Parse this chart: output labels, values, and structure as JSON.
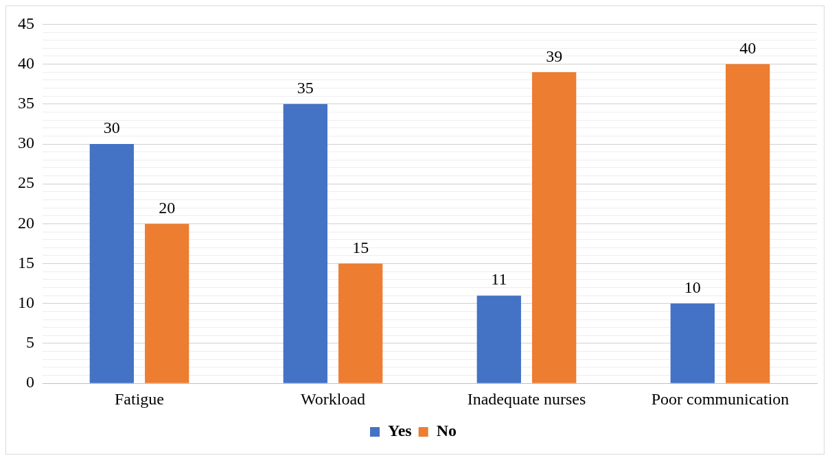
{
  "chart_data": {
    "type": "bar",
    "categories": [
      "Fatigue",
      "Workload",
      "Inadequate nurses",
      "Poor communication"
    ],
    "series": [
      {
        "name": "Yes",
        "color": "#4472c4",
        "values": [
          30,
          35,
          11,
          10
        ]
      },
      {
        "name": "No",
        "color": "#ed7d31",
        "values": [
          20,
          15,
          39,
          40
        ]
      }
    ],
    "ylim": [
      0,
      45
    ],
    "yticks": [
      0,
      {
        "value": 1,
        "label": null
      },
      {
        "value": 2,
        "label": null
      },
      {
        "value": 3,
        "label": null
      },
      {
        "value": 4,
        "label": null
      },
      5,
      {
        "value": 6,
        "label": null
      },
      {
        "value": 7,
        "label": null
      },
      {
        "value": 8,
        "label": null
      },
      {
        "value": 9,
        "label": null
      },
      10,
      {
        "value": 11,
        "label": null
      },
      {
        "value": 12,
        "label": null
      },
      {
        "value": 13,
        "label": null
      },
      {
        "value": 14,
        "label": null
      },
      15,
      {
        "value": 16,
        "label": null
      },
      {
        "value": 17,
        "label": null
      },
      {
        "value": 18,
        "label": null
      },
      {
        "value": 19,
        "label": null
      },
      20,
      {
        "value": 21,
        "label": null
      },
      {
        "value": 22,
        "label": null
      },
      {
        "value": 23,
        "label": null
      },
      {
        "value": 24,
        "label": null
      },
      25,
      {
        "value": 26,
        "label": null
      },
      {
        "value": 27,
        "label": null
      },
      {
        "value": 28,
        "label": null
      },
      {
        "value": 29,
        "label": null
      },
      30,
      {
        "value": 31,
        "label": null
      },
      {
        "value": 32,
        "label": null
      },
      {
        "value": 33,
        "label": null
      },
      {
        "value": 34,
        "label": null
      },
      35,
      {
        "value": 36,
        "label": null
      },
      {
        "value": 37,
        "label": null
      },
      {
        "value": 38,
        "label": null
      },
      {
        "value": 39,
        "label": null
      },
      40,
      {
        "value": 41,
        "label": null
      },
      {
        "value": 42,
        "label": null
      },
      {
        "value": 43,
        "label": null
      },
      {
        "value": 44,
        "label": null
      },
      45
    ],
    "grid": "y",
    "legend": "bottom",
    "data_labels": true
  }
}
